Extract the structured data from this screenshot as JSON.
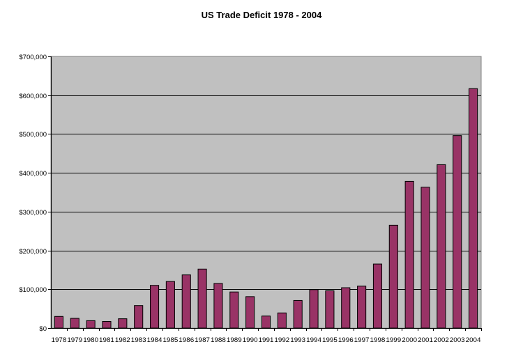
{
  "chart_data": {
    "type": "bar",
    "title": "US Trade Deficit 1978 - 2004",
    "xlabel": "",
    "ylabel": "",
    "categories": [
      "1978",
      "1979",
      "1980",
      "1981",
      "1982",
      "1983",
      "1984",
      "1985",
      "1986",
      "1987",
      "1988",
      "1989",
      "1990",
      "1991",
      "1992",
      "1993",
      "1994",
      "1995",
      "1996",
      "1997",
      "1998",
      "1999",
      "2000",
      "2001",
      "2002",
      "2003",
      "2004"
    ],
    "values": [
      30000,
      25000,
      19000,
      17000,
      24000,
      58000,
      110000,
      120000,
      137000,
      152000,
      115000,
      93000,
      81000,
      31000,
      39000,
      71000,
      99000,
      96000,
      104000,
      108000,
      165000,
      265000,
      378000,
      363000,
      421000,
      496000,
      617000
    ],
    "ylim": [
      0,
      700000
    ],
    "yticks": [
      0,
      100000,
      200000,
      300000,
      400000,
      500000,
      600000,
      700000
    ],
    "ytick_labels": [
      "$0",
      "$100,000",
      "$200,000",
      "$300,000",
      "$400,000",
      "$500,000",
      "$600,000",
      "$700,000"
    ],
    "grid": true,
    "legend": "none",
    "colors": {
      "bar_fill": "#993366",
      "bar_stroke": "#000000",
      "plot_background": "#c0c0c0",
      "gridline": "#000000"
    }
  }
}
